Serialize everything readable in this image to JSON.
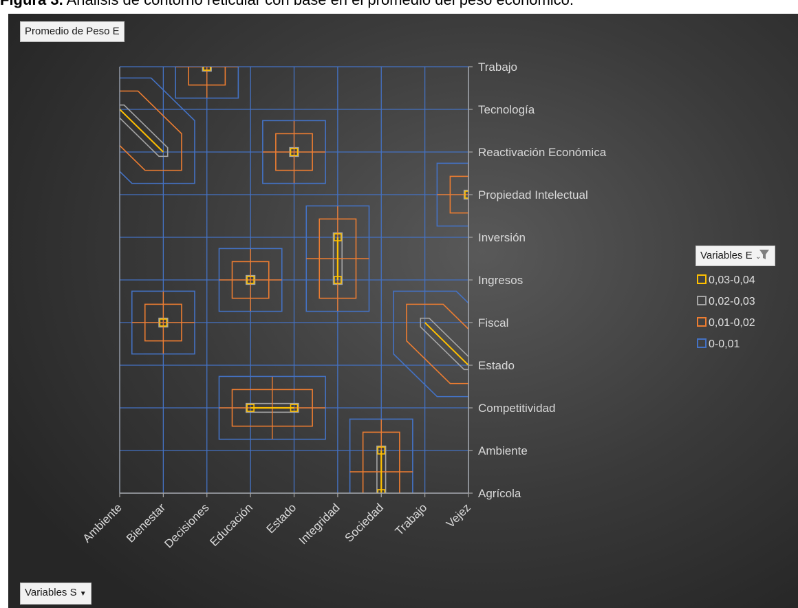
{
  "caption": {
    "bold": "Figura 3.",
    "text": " Análisis de contorno reticular con base en el promedio del peso económico."
  },
  "field_button": "Promedio de Peso E",
  "axis_button": "Variables S",
  "legend": {
    "title": "Variables E",
    "items": [
      {
        "label": "0,03-0,04",
        "color": "#ffc000"
      },
      {
        "label": "0,02-0,03",
        "color": "#a5a5a5"
      },
      {
        "label": "0,01-0,02",
        "color": "#ed7d31"
      },
      {
        "label": "0-0,01",
        "color": "#4472c4"
      }
    ]
  },
  "chart_data": {
    "type": "heatmap",
    "subtype": "contour-wireframe",
    "x_categories": [
      "Ambiente",
      "Bienestar",
      "Decisiones",
      "Educación",
      "Estado",
      "Integridad",
      "Sociedad",
      "Trabajo",
      "Vejez"
    ],
    "y_categories": [
      "Agrícola",
      "Ambiente",
      "Competitividad",
      "Estado",
      "Fiscal",
      "Ingresos",
      "Inversión",
      "Propiedad Intelectual",
      "Reactivación Económica",
      "Tecnología",
      "Trabajo"
    ],
    "bands": [
      "0-0,01",
      "0,01-0,02",
      "0,02-0,03",
      "0,03-0,04"
    ],
    "band_colors": [
      "#4472c4",
      "#ed7d31",
      "#a5a5a5",
      "#ffc000"
    ],
    "points": [
      {
        "x": "Ambiente",
        "y": "Tecnología",
        "value": 0.03
      },
      {
        "x": "Bienestar",
        "y": "Reactivación Económica",
        "value": 0.03
      },
      {
        "x": "Decisiones",
        "y": "Trabajo",
        "value": 0.03
      },
      {
        "x": "Estado",
        "y": "Reactivación Económica",
        "value": 0.03
      },
      {
        "x": "Vejez",
        "y": "Propiedad Intelectual",
        "value": 0.03
      },
      {
        "x": "Integridad",
        "y": "Inversión",
        "value": 0.03
      },
      {
        "x": "Integridad",
        "y": "Ingresos",
        "value": 0.03
      },
      {
        "x": "Educación",
        "y": "Ingresos",
        "value": 0.03
      },
      {
        "x": "Bienestar",
        "y": "Fiscal",
        "value": 0.03
      },
      {
        "x": "Trabajo",
        "y": "Fiscal",
        "value": 0.03
      },
      {
        "x": "Vejez",
        "y": "Estado",
        "value": 0.03
      },
      {
        "x": "Educación",
        "y": "Competitividad",
        "value": 0.03
      },
      {
        "x": "Estado",
        "y": "Competitividad",
        "value": 0.03
      },
      {
        "x": "Sociedad",
        "y": "Ambiente",
        "value": 0.03
      },
      {
        "x": "Sociedad",
        "y": "Agrícola",
        "value": 0.03
      }
    ]
  }
}
